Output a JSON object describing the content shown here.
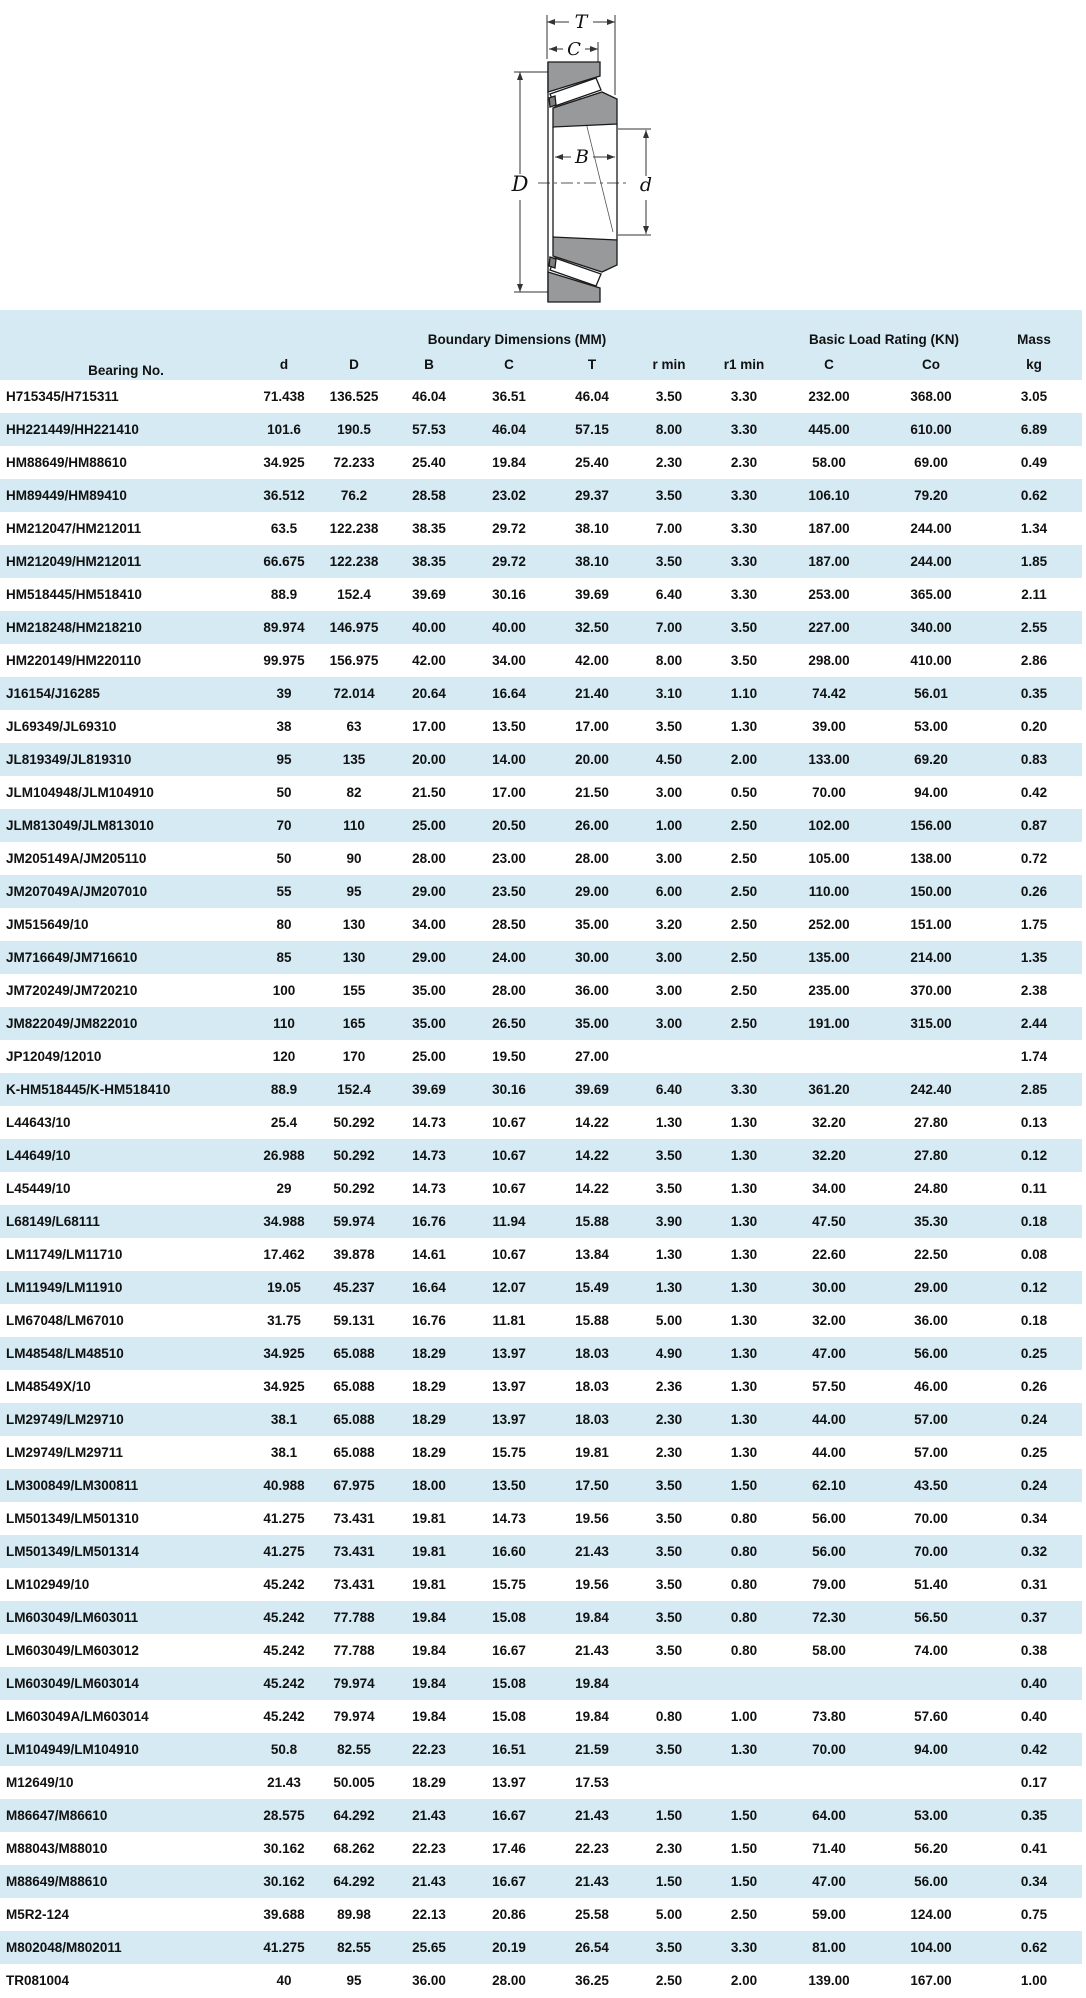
{
  "colors": {
    "row_alt_bg": "#d5eaf3",
    "header_bg": "#d5eaf3",
    "text": "#111111",
    "diagram_gray": "#97999b"
  },
  "diagram": {
    "labels": {
      "T": "T",
      "C": "C",
      "B": "B",
      "D": "D",
      "d": "d"
    }
  },
  "table": {
    "group_headers": {
      "bearing": "Bearing No.",
      "boundary": "Boundary Dimensions (MM)",
      "load": "Basic Load Rating (KN)",
      "mass": "Mass"
    },
    "columns": [
      "d",
      "D",
      "B",
      "C",
      "T",
      "r min",
      "r1 min",
      "C",
      "Co",
      "kg"
    ],
    "rows": [
      {
        "bearing": "H715345/H715311",
        "values": [
          "71.438",
          "136.525",
          "46.04",
          "36.51",
          "46.04",
          "3.50",
          "3.30",
          "232.00",
          "368.00",
          "3.05"
        ]
      },
      {
        "bearing": "HH221449/HH221410",
        "values": [
          "101.6",
          "190.5",
          "57.53",
          "46.04",
          "57.15",
          "8.00",
          "3.30",
          "445.00",
          "610.00",
          "6.89"
        ]
      },
      {
        "bearing": "HM88649/HM88610",
        "values": [
          "34.925",
          "72.233",
          "25.40",
          "19.84",
          "25.40",
          "2.30",
          "2.30",
          "58.00",
          "69.00",
          "0.49"
        ]
      },
      {
        "bearing": "HM89449/HM89410",
        "values": [
          "36.512",
          "76.2",
          "28.58",
          "23.02",
          "29.37",
          "3.50",
          "3.30",
          "106.10",
          "79.20",
          "0.62"
        ]
      },
      {
        "bearing": "HM212047/HM212011",
        "values": [
          "63.5",
          "122.238",
          "38.35",
          "29.72",
          "38.10",
          "7.00",
          "3.30",
          "187.00",
          "244.00",
          "1.34"
        ]
      },
      {
        "bearing": "HM212049/HM212011",
        "values": [
          "66.675",
          "122.238",
          "38.35",
          "29.72",
          "38.10",
          "3.50",
          "3.30",
          "187.00",
          "244.00",
          "1.85"
        ]
      },
      {
        "bearing": "HM518445/HM518410",
        "values": [
          "88.9",
          "152.4",
          "39.69",
          "30.16",
          "39.69",
          "6.40",
          "3.30",
          "253.00",
          "365.00",
          "2.11"
        ]
      },
      {
        "bearing": "HM218248/HM218210",
        "values": [
          "89.974",
          "146.975",
          "40.00",
          "40.00",
          "32.50",
          "7.00",
          "3.50",
          "227.00",
          "340.00",
          "2.55"
        ]
      },
      {
        "bearing": "HM220149/HM220110",
        "values": [
          "99.975",
          "156.975",
          "42.00",
          "34.00",
          "42.00",
          "8.00",
          "3.50",
          "298.00",
          "410.00",
          "2.86"
        ]
      },
      {
        "bearing": "J16154/J16285",
        "values": [
          "39",
          "72.014",
          "20.64",
          "16.64",
          "21.40",
          "3.10",
          "1.10",
          "74.42",
          "56.01",
          "0.35"
        ]
      },
      {
        "bearing": "JL69349/JL69310",
        "values": [
          "38",
          "63",
          "17.00",
          "13.50",
          "17.00",
          "3.50",
          "1.30",
          "39.00",
          "53.00",
          "0.20"
        ]
      },
      {
        "bearing": "JL819349/JL819310",
        "values": [
          "95",
          "135",
          "20.00",
          "14.00",
          "20.00",
          "4.50",
          "2.00",
          "133.00",
          "69.20",
          "0.83"
        ]
      },
      {
        "bearing": "JLM104948/JLM104910",
        "values": [
          "50",
          "82",
          "21.50",
          "17.00",
          "21.50",
          "3.00",
          "0.50",
          "70.00",
          "94.00",
          "0.42"
        ]
      },
      {
        "bearing": "JLM813049/JLM813010",
        "values": [
          "70",
          "110",
          "25.00",
          "20.50",
          "26.00",
          "1.00",
          "2.50",
          "102.00",
          "156.00",
          "0.87"
        ]
      },
      {
        "bearing": "JM205149A/JM205110",
        "values": [
          "50",
          "90",
          "28.00",
          "23.00",
          "28.00",
          "3.00",
          "2.50",
          "105.00",
          "138.00",
          "0.72"
        ]
      },
      {
        "bearing": "JM207049A/JM207010",
        "values": [
          "55",
          "95",
          "29.00",
          "23.50",
          "29.00",
          "6.00",
          "2.50",
          "110.00",
          "150.00",
          "0.26"
        ]
      },
      {
        "bearing": "JM515649/10",
        "values": [
          "80",
          "130",
          "34.00",
          "28.50",
          "35.00",
          "3.20",
          "2.50",
          "252.00",
          "151.00",
          "1.75"
        ]
      },
      {
        "bearing": "JM716649/JM716610",
        "values": [
          "85",
          "130",
          "29.00",
          "24.00",
          "30.00",
          "3.00",
          "2.50",
          "135.00",
          "214.00",
          "1.35"
        ]
      },
      {
        "bearing": "JM720249/JM720210",
        "values": [
          "100",
          "155",
          "35.00",
          "28.00",
          "36.00",
          "3.00",
          "2.50",
          "235.00",
          "370.00",
          "2.38"
        ]
      },
      {
        "bearing": "JM822049/JM822010",
        "values": [
          "110",
          "165",
          "35.00",
          "26.50",
          "35.00",
          "3.00",
          "2.50",
          "191.00",
          "315.00",
          "2.44"
        ]
      },
      {
        "bearing": "JP12049/12010",
        "values": [
          "120",
          "170",
          "25.00",
          "19.50",
          "27.00",
          "",
          "",
          "",
          "",
          "1.74"
        ]
      },
      {
        "bearing": "K-HM518445/K-HM518410",
        "values": [
          "88.9",
          "152.4",
          "39.69",
          "30.16",
          "39.69",
          "6.40",
          "3.30",
          "361.20",
          "242.40",
          "2.85"
        ]
      },
      {
        "bearing": "L44643/10",
        "values": [
          "25.4",
          "50.292",
          "14.73",
          "10.67",
          "14.22",
          "1.30",
          "1.30",
          "32.20",
          "27.80",
          "0.13"
        ]
      },
      {
        "bearing": "L44649/10",
        "values": [
          "26.988",
          "50.292",
          "14.73",
          "10.67",
          "14.22",
          "3.50",
          "1.30",
          "32.20",
          "27.80",
          "0.12"
        ]
      },
      {
        "bearing": "L45449/10",
        "values": [
          "29",
          "50.292",
          "14.73",
          "10.67",
          "14.22",
          "3.50",
          "1.30",
          "34.00",
          "24.80",
          "0.11"
        ]
      },
      {
        "bearing": "L68149/L68111",
        "values": [
          "34.988",
          "59.974",
          "16.76",
          "11.94",
          "15.88",
          "3.90",
          "1.30",
          "47.50",
          "35.30",
          "0.18"
        ]
      },
      {
        "bearing": "LM11749/LM11710",
        "values": [
          "17.462",
          "39.878",
          "14.61",
          "10.67",
          "13.84",
          "1.30",
          "1.30",
          "22.60",
          "22.50",
          "0.08"
        ]
      },
      {
        "bearing": "LM11949/LM11910",
        "values": [
          "19.05",
          "45.237",
          "16.64",
          "12.07",
          "15.49",
          "1.30",
          "1.30",
          "30.00",
          "29.00",
          "0.12"
        ]
      },
      {
        "bearing": "LM67048/LM67010",
        "values": [
          "31.75",
          "59.131",
          "16.76",
          "11.81",
          "15.88",
          "5.00",
          "1.30",
          "32.00",
          "36.00",
          "0.18"
        ]
      },
      {
        "bearing": "LM48548/LM48510",
        "values": [
          "34.925",
          "65.088",
          "18.29",
          "13.97",
          "18.03",
          "4.90",
          "1.30",
          "47.00",
          "56.00",
          "0.25"
        ]
      },
      {
        "bearing": "LM48549X/10",
        "values": [
          "34.925",
          "65.088",
          "18.29",
          "13.97",
          "18.03",
          "2.36",
          "1.30",
          "57.50",
          "46.00",
          "0.26"
        ]
      },
      {
        "bearing": "LM29749/LM29710",
        "values": [
          "38.1",
          "65.088",
          "18.29",
          "13.97",
          "18.03",
          "2.30",
          "1.30",
          "44.00",
          "57.00",
          "0.24"
        ]
      },
      {
        "bearing": "LM29749/LM29711",
        "values": [
          "38.1",
          "65.088",
          "18.29",
          "15.75",
          "19.81",
          "2.30",
          "1.30",
          "44.00",
          "57.00",
          "0.25"
        ]
      },
      {
        "bearing": "LM300849/LM300811",
        "values": [
          "40.988",
          "67.975",
          "18.00",
          "13.50",
          "17.50",
          "3.50",
          "1.50",
          "62.10",
          "43.50",
          "0.24"
        ]
      },
      {
        "bearing": "LM501349/LM501310",
        "values": [
          "41.275",
          "73.431",
          "19.81",
          "14.73",
          "19.56",
          "3.50",
          "0.80",
          "56.00",
          "70.00",
          "0.34"
        ]
      },
      {
        "bearing": "LM501349/LM501314",
        "values": [
          "41.275",
          "73.431",
          "19.81",
          "16.60",
          "21.43",
          "3.50",
          "0.80",
          "56.00",
          "70.00",
          "0.32"
        ]
      },
      {
        "bearing": "LM102949/10",
        "values": [
          "45.242",
          "73.431",
          "19.81",
          "15.75",
          "19.56",
          "3.50",
          "0.80",
          "79.00",
          "51.40",
          "0.31"
        ]
      },
      {
        "bearing": "LM603049/LM603011",
        "values": [
          "45.242",
          "77.788",
          "19.84",
          "15.08",
          "19.84",
          "3.50",
          "0.80",
          "72.30",
          "56.50",
          "0.37"
        ]
      },
      {
        "bearing": "LM603049/LM603012",
        "values": [
          "45.242",
          "77.788",
          "19.84",
          "16.67",
          "21.43",
          "3.50",
          "0.80",
          "58.00",
          "74.00",
          "0.38"
        ]
      },
      {
        "bearing": "LM603049/LM603014",
        "values": [
          "45.242",
          "79.974",
          "19.84",
          "15.08",
          "19.84",
          "",
          "",
          "",
          "",
          "0.40"
        ]
      },
      {
        "bearing": "LM603049A/LM603014",
        "values": [
          "45.242",
          "79.974",
          "19.84",
          "15.08",
          "19.84",
          "0.80",
          "1.00",
          "73.80",
          "57.60",
          "0.40"
        ]
      },
      {
        "bearing": "LM104949/LM104910",
        "values": [
          "50.8",
          "82.55",
          "22.23",
          "16.51",
          "21.59",
          "3.50",
          "1.30",
          "70.00",
          "94.00",
          "0.42"
        ]
      },
      {
        "bearing": "M12649/10",
        "values": [
          "21.43",
          "50.005",
          "18.29",
          "13.97",
          "17.53",
          "",
          "",
          "",
          "",
          "0.17"
        ]
      },
      {
        "bearing": "M86647/M86610",
        "values": [
          "28.575",
          "64.292",
          "21.43",
          "16.67",
          "21.43",
          "1.50",
          "1.50",
          "64.00",
          "53.00",
          "0.35"
        ]
      },
      {
        "bearing": "M88043/M88010",
        "values": [
          "30.162",
          "68.262",
          "22.23",
          "17.46",
          "22.23",
          "2.30",
          "1.50",
          "71.40",
          "56.20",
          "0.41"
        ]
      },
      {
        "bearing": "M88649/M88610",
        "values": [
          "30.162",
          "64.292",
          "21.43",
          "16.67",
          "21.43",
          "1.50",
          "1.50",
          "47.00",
          "56.00",
          "0.34"
        ]
      },
      {
        "bearing": "M5R2-124",
        "values": [
          "39.688",
          "89.98",
          "22.13",
          "20.86",
          "25.58",
          "5.00",
          "2.50",
          "59.00",
          "124.00",
          "0.75"
        ]
      },
      {
        "bearing": "M802048/M802011",
        "values": [
          "41.275",
          "82.55",
          "25.65",
          "20.19",
          "26.54",
          "3.50",
          "3.30",
          "81.00",
          "104.00",
          "0.62"
        ]
      },
      {
        "bearing": "TR081004",
        "values": [
          "40",
          "95",
          "36.00",
          "28.00",
          "36.25",
          "2.50",
          "2.00",
          "139.00",
          "167.00",
          "1.00"
        ]
      }
    ]
  }
}
